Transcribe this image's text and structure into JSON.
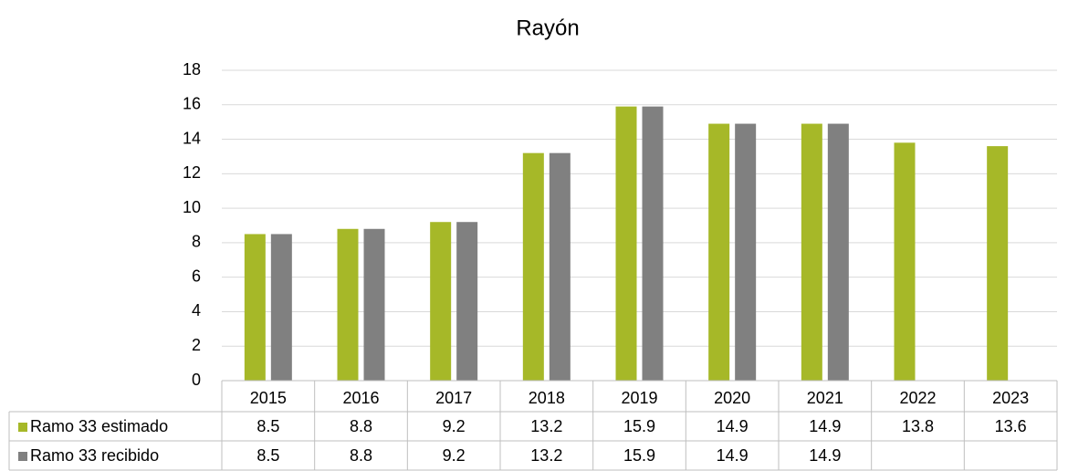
{
  "chart_data": {
    "type": "bar",
    "title": "Rayón",
    "categories": [
      "2015",
      "2016",
      "2017",
      "2018",
      "2019",
      "2020",
      "2021",
      "2022",
      "2023"
    ],
    "series": [
      {
        "name": "Ramo 33 estimado",
        "color": "#a6b828",
        "values": [
          8.5,
          8.8,
          9.2,
          13.2,
          15.9,
          14.9,
          14.9,
          13.8,
          13.6
        ]
      },
      {
        "name": "Ramo 33 recibido",
        "color": "#808080",
        "values": [
          8.5,
          8.8,
          9.2,
          13.2,
          15.9,
          14.9,
          14.9,
          null,
          null
        ]
      }
    ],
    "ylim": [
      0,
      18
    ],
    "yticks": [
      0,
      2,
      4,
      6,
      8,
      10,
      12,
      14,
      16,
      18
    ],
    "grid": true,
    "data_table": true
  }
}
